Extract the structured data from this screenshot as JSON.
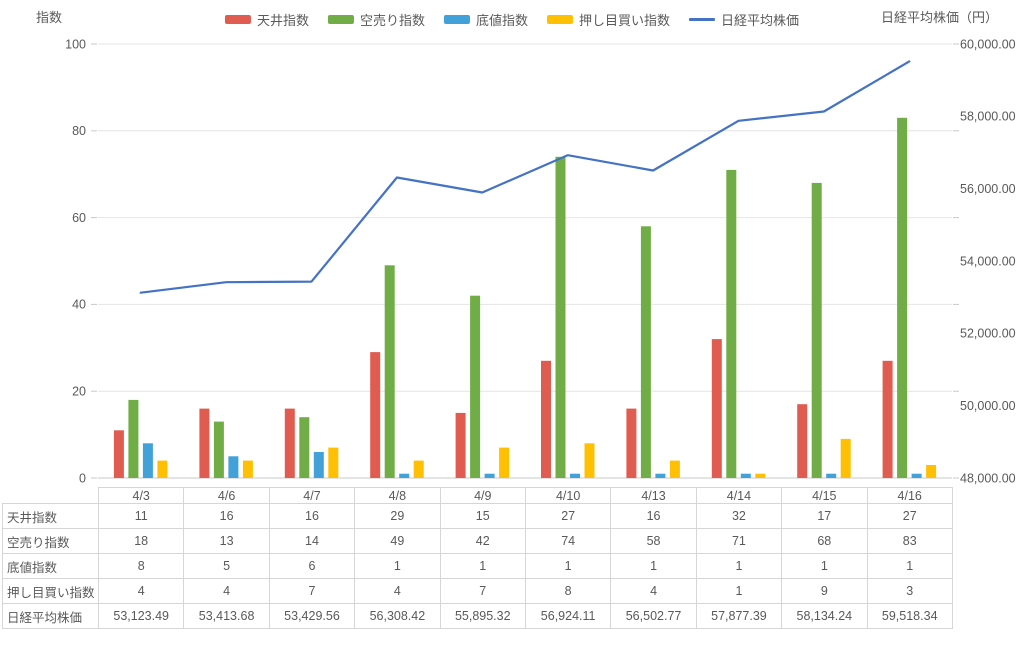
{
  "palette": {
    "background": "#FFFFFF",
    "grid": "#E4E4E4",
    "axis_line": "#C9C9C9",
    "tick_mark": "#C9C9C9",
    "text": "#595959",
    "table_border": "#D6D6D6"
  },
  "chart_data": {
    "type": "bar+line-combo",
    "categories": [
      "4/3",
      "4/6",
      "4/7",
      "4/8",
      "4/9",
      "4/10",
      "4/13",
      "4/14",
      "4/15",
      "4/16"
    ],
    "series": [
      {
        "name": "天井指数",
        "type": "bar",
        "axis": "left",
        "color": "#E15C50",
        "values": [
          11,
          16,
          16,
          29,
          15,
          27,
          16,
          32,
          17,
          27
        ]
      },
      {
        "name": "空売り指数",
        "type": "bar",
        "axis": "left",
        "color": "#70AD47",
        "values": [
          18,
          13,
          14,
          49,
          42,
          74,
          58,
          71,
          68,
          83
        ]
      },
      {
        "name": "底値指数",
        "type": "bar",
        "axis": "left",
        "color": "#41A1D8",
        "values": [
          8,
          5,
          6,
          1,
          1,
          1,
          1,
          1,
          1,
          1
        ]
      },
      {
        "name": "押し目買い指数",
        "type": "bar",
        "axis": "left",
        "color": "#FFC004",
        "values": [
          4,
          4,
          7,
          4,
          7,
          8,
          4,
          1,
          9,
          3
        ]
      },
      {
        "name": "日経平均株価",
        "type": "line",
        "axis": "right",
        "color": "#4472C4",
        "values": [
          53123.49,
          53413.68,
          53429.56,
          56308.42,
          55895.32,
          56924.11,
          56502.77,
          57877.39,
          58134.24,
          59518.34
        ]
      }
    ],
    "left_axis": {
      "title": "指数",
      "min": 0,
      "max": 100,
      "step": 20,
      "ticks": [
        "100",
        "80",
        "60",
        "40",
        "20",
        "0"
      ]
    },
    "right_axis": {
      "title": "日経平均株価（円）",
      "min": 48000,
      "max": 60000,
      "step": 2000,
      "ticks": [
        "60,000.00",
        "58,000.00",
        "56,000.00",
        "54,000.00",
        "52,000.00",
        "50,000.00",
        "48,000.00"
      ]
    },
    "grid": true,
    "legend_position": "top"
  },
  "table": {
    "header": [
      "4/3",
      "4/6",
      "4/7",
      "4/8",
      "4/9",
      "4/10",
      "4/13",
      "4/14",
      "4/15",
      "4/16"
    ],
    "rows": [
      {
        "label": "天井指数",
        "values": [
          "11",
          "16",
          "16",
          "29",
          "15",
          "27",
          "16",
          "32",
          "17",
          "27"
        ]
      },
      {
        "label": "空売り指数",
        "values": [
          "18",
          "13",
          "14",
          "49",
          "42",
          "74",
          "58",
          "71",
          "68",
          "83"
        ]
      },
      {
        "label": "底値指数",
        "values": [
          "8",
          "5",
          "6",
          "1",
          "1",
          "1",
          "1",
          "1",
          "1",
          "1"
        ]
      },
      {
        "label": "押し目買い指数",
        "values": [
          "4",
          "4",
          "7",
          "4",
          "7",
          "8",
          "4",
          "1",
          "9",
          "3"
        ]
      },
      {
        "label": "日経平均株価",
        "values": [
          "53,123.49",
          "53,413.68",
          "53,429.56",
          "56,308.42",
          "55,895.32",
          "56,924.11",
          "56,502.77",
          "57,877.39",
          "58,134.24",
          "59,518.34"
        ]
      }
    ]
  }
}
